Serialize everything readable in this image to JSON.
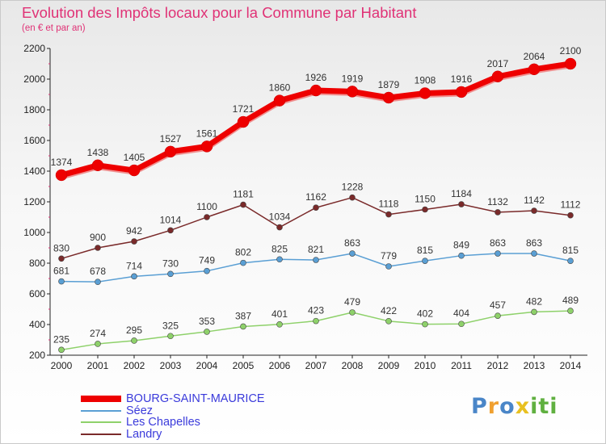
{
  "title": "Evolution des Impôts locaux pour la Commune par Habitant",
  "subtitle": "(en € et par an)",
  "logo": {
    "letters": [
      "P",
      "r",
      "o",
      "x",
      "i",
      "t",
      "i"
    ],
    "colors": [
      "#4a86c8",
      "#f0a030",
      "#4a86c8",
      "#e8c020",
      "#60b040",
      "#60b040",
      "#60b040"
    ]
  },
  "chart_data": {
    "type": "line",
    "title": "Evolution des Impôts locaux pour la Commune par Habitant",
    "subtitle": "(en € et par an)",
    "x": [
      "2000",
      "2001",
      "2002",
      "2003",
      "2004",
      "2005",
      "2006",
      "2007",
      "2008",
      "2009",
      "2010",
      "2011",
      "2012",
      "2013",
      "2014"
    ],
    "ylim": [
      200,
      2200
    ],
    "yticks": [
      200,
      400,
      600,
      800,
      1000,
      1200,
      1400,
      1600,
      1800,
      2000,
      2200
    ],
    "grid": false,
    "legend_position": "bottom-left",
    "series": [
      {
        "name": "BOURG-SAINT-MAURICE",
        "color": "#ee0000",
        "values": [
          1374,
          1438,
          1405,
          1527,
          1561,
          1721,
          1860,
          1926,
          1919,
          1879,
          1908,
          1916,
          2017,
          2064,
          2100
        ]
      },
      {
        "name": "Séez",
        "color": "#5a9fd4",
        "values": [
          681,
          678,
          714,
          730,
          749,
          802,
          825,
          821,
          863,
          779,
          815,
          849,
          863,
          863,
          815
        ]
      },
      {
        "name": "Les Chapelles",
        "color": "#8ed16a",
        "values": [
          235,
          274,
          295,
          325,
          353,
          387,
          401,
          423,
          479,
          422,
          402,
          404,
          457,
          482,
          489
        ]
      },
      {
        "name": "Landry",
        "color": "#7a2a2a",
        "values": [
          830,
          900,
          942,
          1014,
          1100,
          1181,
          1034,
          1162,
          1228,
          1118,
          1150,
          1184,
          1132,
          1142,
          1112
        ]
      }
    ]
  }
}
